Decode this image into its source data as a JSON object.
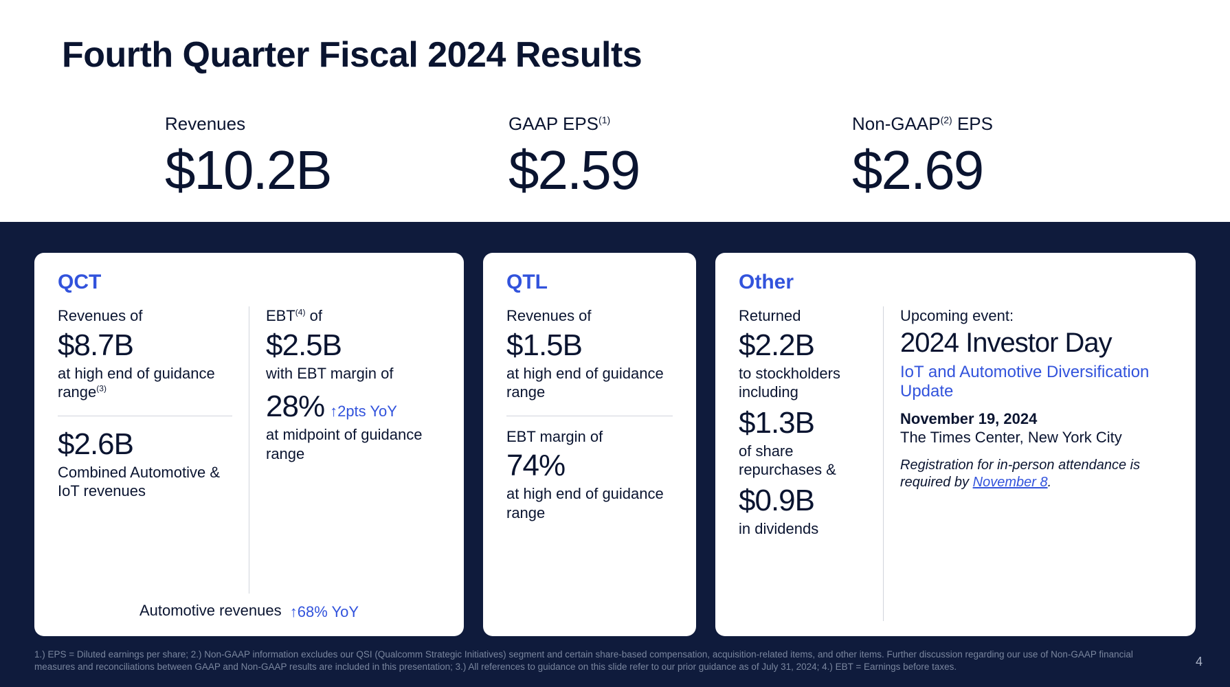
{
  "title": "Fourth Quarter Fiscal 2024 Results",
  "metrics": {
    "revenues": {
      "label": "Revenues",
      "value": "$10.2B"
    },
    "gaap_eps": {
      "label_pre": "GAAP EPS",
      "sup": "(1)",
      "value": "$2.59"
    },
    "nongaap_eps": {
      "label_pre": "Non-GAAP",
      "sup": "(2)",
      "label_post": " EPS",
      "value": "$2.69"
    }
  },
  "qct": {
    "title": "QCT",
    "rev_label": "Revenues of",
    "rev_value": "$8.7B",
    "rev_desc_pre": "at high end of guidance range",
    "rev_desc_sup": "(3)",
    "combo_value": "$2.6B",
    "combo_desc": "Combined Automotive & IoT revenues",
    "ebt_label_pre": "EBT",
    "ebt_label_sup": "(4)",
    "ebt_label_post": " of",
    "ebt_value": "$2.5B",
    "ebt_desc": "with EBT margin of",
    "ebt_margin": "28%",
    "ebt_yoy": "↑2pts YoY",
    "ebt_margin_desc": "at midpoint of guidance range",
    "auto_footer_label": "Automotive revenues ",
    "auto_footer_yoy": "↑68% YoY"
  },
  "qtl": {
    "title": "QTL",
    "rev_label": "Revenues of",
    "rev_value": "$1.5B",
    "rev_desc": "at high end of guidance range",
    "ebt_label": "EBT margin of",
    "ebt_margin": "74%",
    "ebt_desc": "at high end of guidance range"
  },
  "other": {
    "title": "Other",
    "ret_label": "Returned",
    "ret_value": "$2.2B",
    "ret_desc": "to stockholders including",
    "repo_value": "$1.3B",
    "repo_desc": "of share repurchases &",
    "div_value": "$0.9B",
    "div_desc": "in dividends",
    "event_label": "Upcoming event:",
    "event_title": "2024 Investor Day",
    "event_sub": "IoT and Automotive Diversification Update",
    "event_date": "November 19, 2024",
    "event_loc": "The Times Center, New York City",
    "event_reg_pre": "Registration for in-person attendance is required by ",
    "event_reg_link": "November 8",
    "event_reg_post": "."
  },
  "footnotes": "1.) EPS = Diluted earnings per share; 2.) Non-GAAP information excludes our QSI (Qualcomm Strategic Initiatives) segment and certain share-based compensation, acquisition-related items, and other items. Further discussion regarding our use of Non-GAAP financial measures and reconciliations between GAAP and Non-GAAP results are included in this presentation; 3.) All references to guidance on this slide refer to our prior guidance as of July 31, 2024; 4.) EBT = Earnings before taxes.",
  "page_number": "4",
  "colors": {
    "accent": "#3253dc",
    "dark_bg": "#0f1b3c",
    "text": "#0a1430",
    "footnote": "#7a869e"
  }
}
